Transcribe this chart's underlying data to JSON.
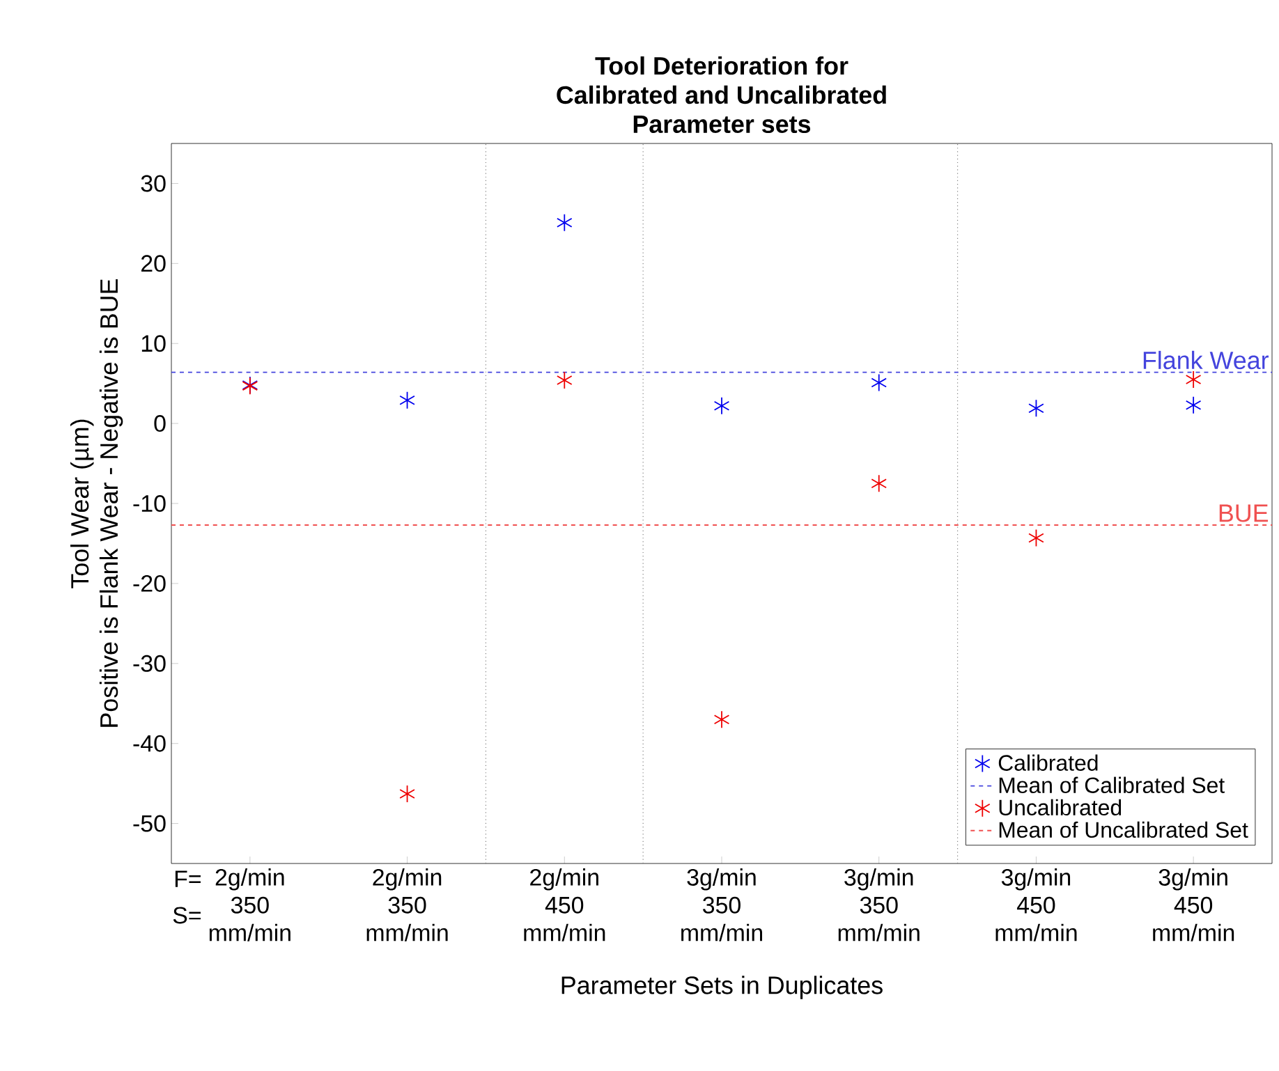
{
  "chart_data": {
    "type": "scatter",
    "title": "Tool Deterioration for\nCalibrated and Uncalibrated\nParameter sets",
    "xlabel": "Parameter Sets in Duplicates",
    "ylabel": "Tool Wear (µm)\nPositive is Flank Wear - Negative is BUE",
    "categories": [
      "2g/min\n350\nmm/min",
      "2g/min\n350\nmm/min",
      "2g/min\n450\nmm/min",
      "3g/min\n350\nmm/min",
      "3g/min\n350\nmm/min",
      "3g/min\n450\nmm/min",
      "3g/min\n450\nmm/min"
    ],
    "series": [
      {
        "name": "Calibrated",
        "color": "#0000ee",
        "marker": "cross",
        "values": [
          4.8,
          2.9,
          25.1,
          2.2,
          5.1,
          1.9,
          2.3
        ]
      },
      {
        "name": "Uncalibrated",
        "color": "#ee0000",
        "marker": "cross",
        "values": [
          4.7,
          -46.3,
          5.4,
          -37.0,
          -7.5,
          -14.3,
          5.5
        ]
      }
    ],
    "ylim": [
      -55,
      35
    ],
    "yticks": [
      -50,
      -40,
      -30,
      -20,
      -10,
      0,
      10,
      20,
      30
    ],
    "ref_lines": [
      {
        "axis": "y",
        "value": 6.4,
        "label": "Mean of Calibrated Set",
        "color": "#4444dd",
        "line_style": "dashed"
      },
      {
        "axis": "y",
        "value": -12.7,
        "label": "Mean of Uncalibrated Set",
        "color": "#f05050",
        "line_style": "dashed"
      }
    ],
    "annotations": [
      "Flank Wear",
      "BUE",
      "F=",
      "S="
    ],
    "legend": "bottom right"
  }
}
